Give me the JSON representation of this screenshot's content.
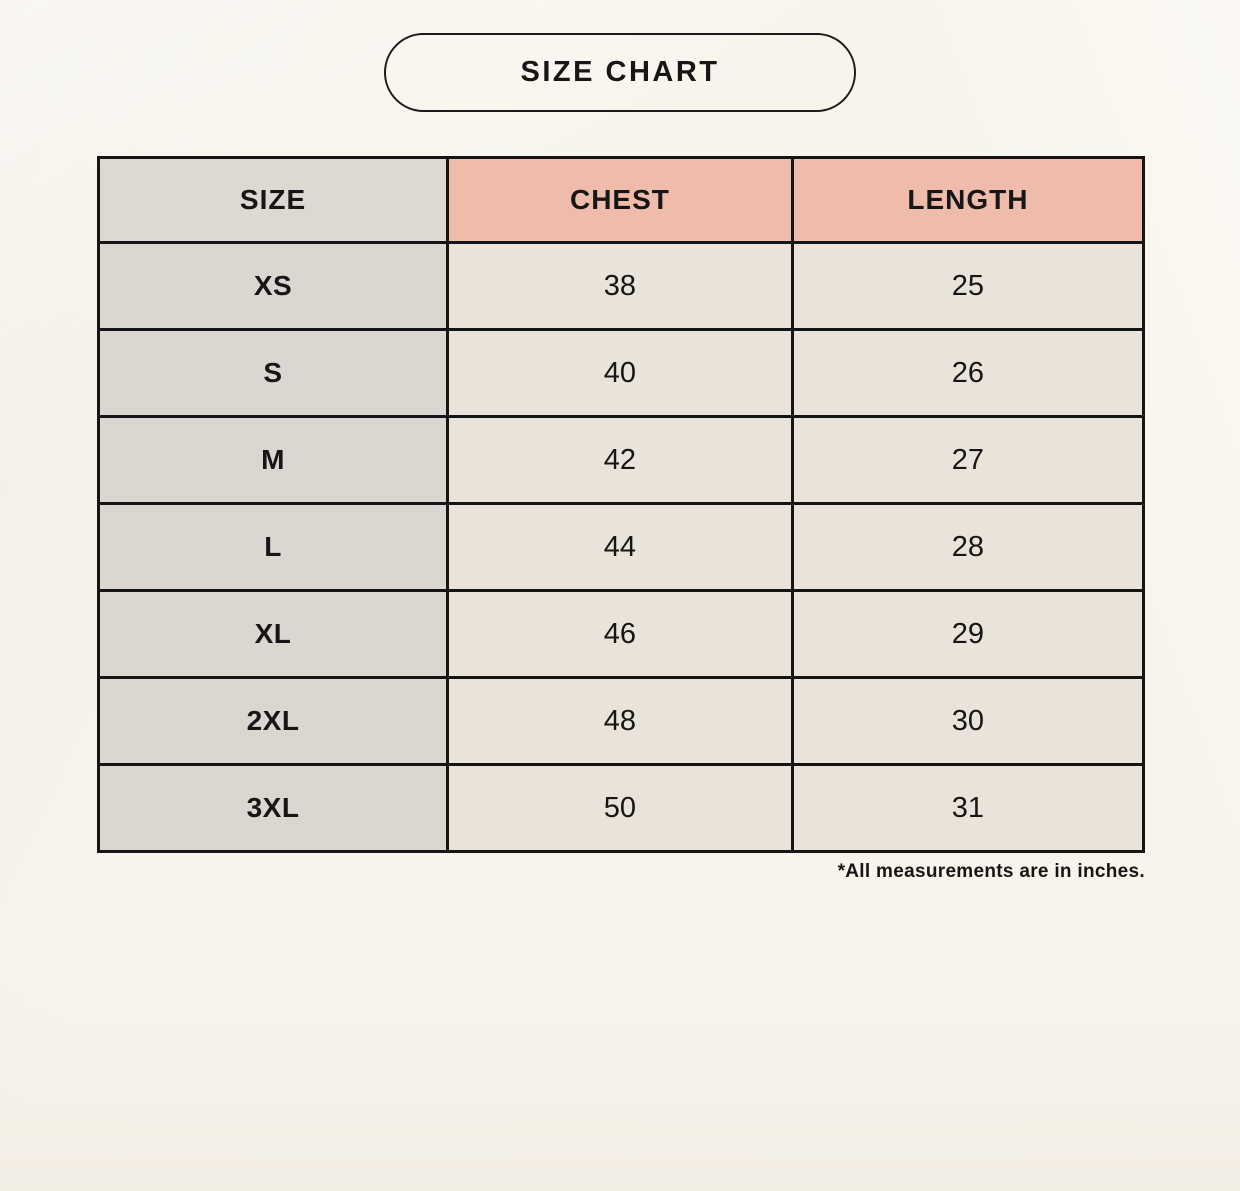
{
  "page": {
    "title_badge": "SIZE CHART",
    "footnote": "*All measurements are in inches."
  },
  "table": {
    "headers": {
      "size": "SIZE",
      "chest": "CHEST",
      "length": "LENGTH"
    },
    "rows": [
      {
        "size": "XS",
        "chest": "38",
        "length": "25"
      },
      {
        "size": "S",
        "chest": "40",
        "length": "26"
      },
      {
        "size": "M",
        "chest": "42",
        "length": "27"
      },
      {
        "size": "L",
        "chest": "44",
        "length": "28"
      },
      {
        "size": "XL",
        "chest": "46",
        "length": "29"
      },
      {
        "size": "2XL",
        "chest": "48",
        "length": "30"
      },
      {
        "size": "3XL",
        "chest": "50",
        "length": "31"
      }
    ]
  },
  "colors": {
    "page_background": "#f8f4ec",
    "header_size_bg": "#ded8d3",
    "header_measure_bg": "#efbcab",
    "size_column_bg": "#dcd6d1",
    "data_cell_bg": "#eae3d9",
    "border": "#151515",
    "text": "#161616"
  },
  "chart_data": {
    "type": "table",
    "title": "SIZE CHART",
    "columns": [
      "SIZE",
      "CHEST",
      "LENGTH"
    ],
    "rows": [
      [
        "XS",
        38,
        25
      ],
      [
        "S",
        40,
        26
      ],
      [
        "M",
        42,
        27
      ],
      [
        "L",
        44,
        28
      ],
      [
        "XL",
        46,
        29
      ],
      [
        "2XL",
        48,
        30
      ],
      [
        "3XL",
        50,
        31
      ]
    ],
    "units": "inches",
    "footnote": "*All measurements are in inches.",
    "layout": {
      "header_accent_columns": [
        "CHEST",
        "LENGTH"
      ],
      "grid": true
    }
  }
}
